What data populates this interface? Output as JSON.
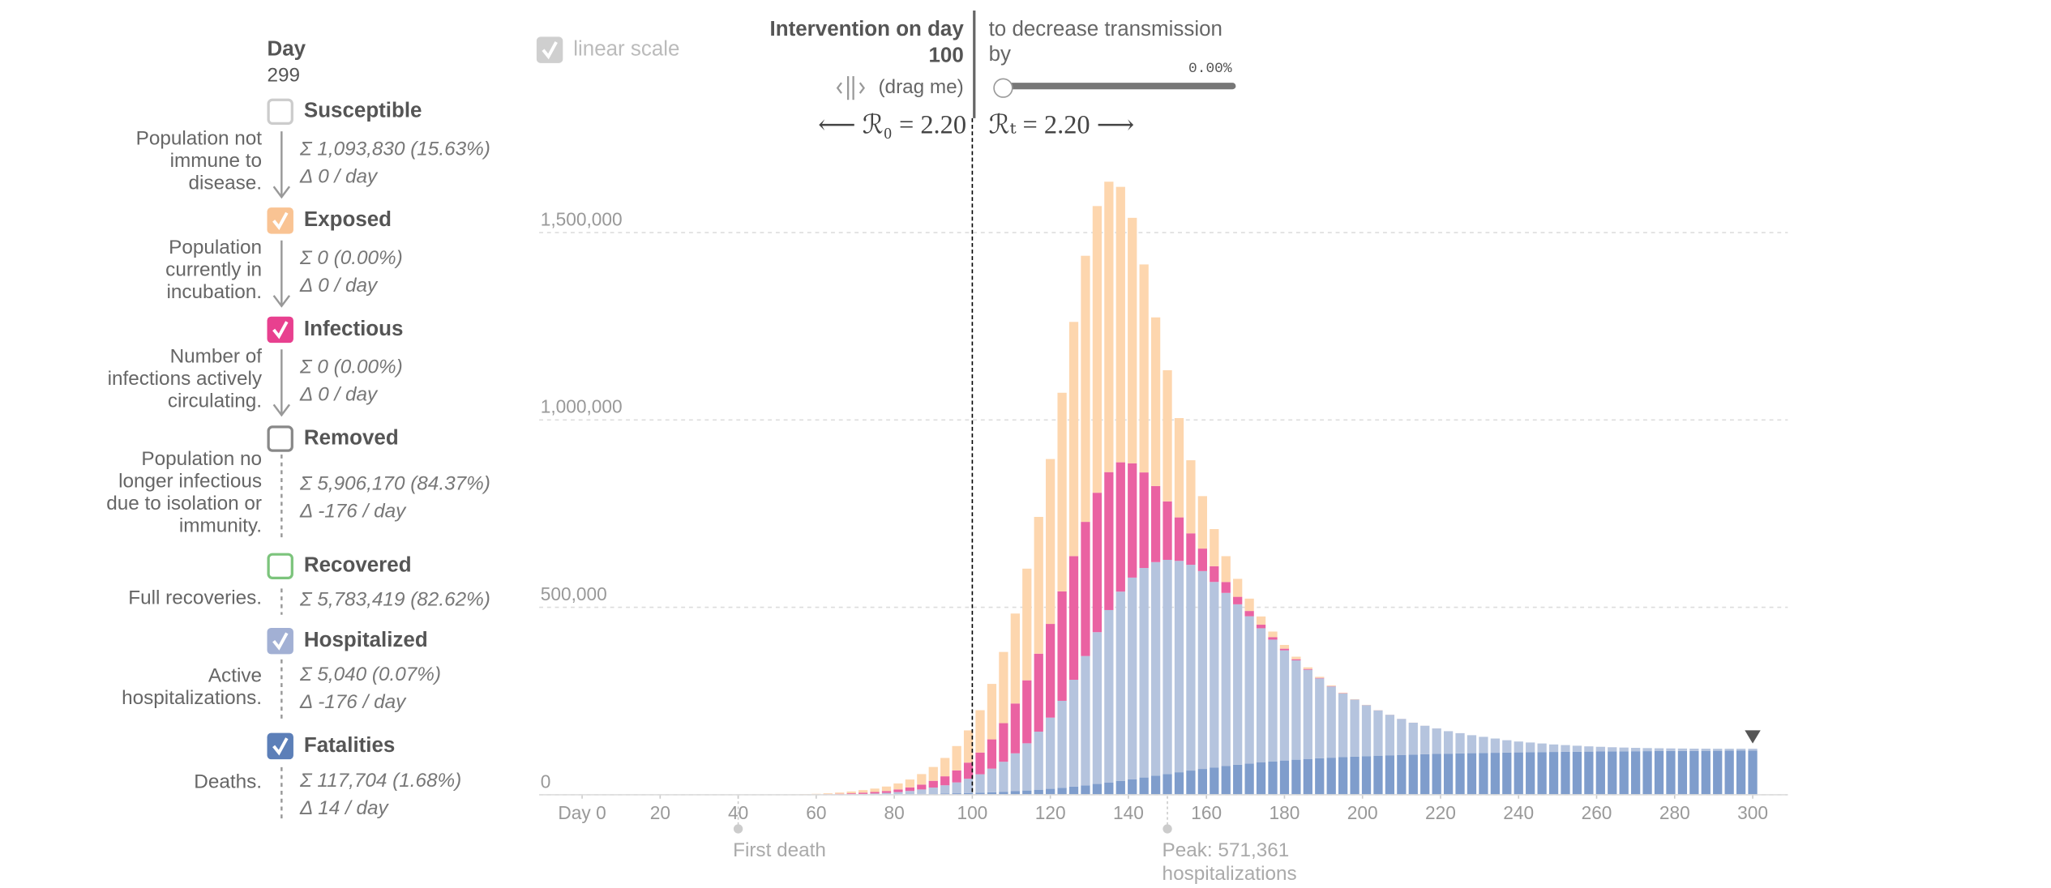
{
  "header": {
    "day_label": "Day",
    "day": 299,
    "linear_scale": "linear scale",
    "linear_checked": true
  },
  "intervention": {
    "label": "Intervention on day",
    "day": 100,
    "drag": "(drag me)",
    "decrease": [
      "to decrease transmission",
      "by"
    ],
    "amount": "0.00%",
    "r0": "⟵ ℛ₀ = 2.20",
    "rt": "ℛₜ = 2.20 ⟶"
  },
  "compartments": [
    {
      "name": "Susceptible",
      "checked": false,
      "color": "#cccccc",
      "description": [
        "Population not",
        "immune to",
        "disease."
      ],
      "total": "Σ 1,093,830 (15.63%)",
      "change": "Δ 0 / day"
    },
    {
      "name": "Exposed",
      "checked": true,
      "color": "#f9c393",
      "description": [
        "Population",
        "currently in",
        "incubation."
      ],
      "total": "Σ 0 (0.00%)",
      "change": "Δ 0 / day"
    },
    {
      "name": "Infectious",
      "checked": true,
      "color": "#e8408f",
      "description": [
        "Number of",
        "infections actively",
        "circulating."
      ],
      "total": "Σ 0 (0.00%)",
      "change": "Δ 0 / day"
    },
    {
      "name": "Removed",
      "checked": false,
      "color": "#888888",
      "description": [
        "Population no",
        "longer infectious",
        "due to isolation or",
        "immunity."
      ],
      "total": "Σ 5,906,170 (84.37%)",
      "change": "Δ -176 / day"
    },
    {
      "name": "Recovered",
      "checked": false,
      "color": "#7cc47c",
      "description": [
        "Full recoveries."
      ],
      "total": "Σ 5,783,419 (82.62%)"
    },
    {
      "name": "Hospitalized",
      "checked": true,
      "color": "#a2b0d4",
      "description": [
        "Active",
        "hospitalizations."
      ],
      "total": "Σ 5,040 (0.07%)",
      "change": "Δ -176 / day"
    },
    {
      "name": "Fatalities",
      "checked": true,
      "color": "#5c7fb8",
      "description": [
        "Deaths."
      ],
      "total": "Σ 117,704 (1.68%)",
      "change": "Δ 14 / day"
    }
  ],
  "chart_data": {
    "type": "bar",
    "stacked": true,
    "x": [
      0,
      3,
      6,
      9,
      12,
      15,
      18,
      21,
      24,
      27,
      30,
      33,
      36,
      39,
      42,
      45,
      48,
      51,
      54,
      57,
      60,
      63,
      66,
      69,
      72,
      75,
      78,
      81,
      84,
      87,
      90,
      93,
      96,
      99,
      102,
      105,
      108,
      111,
      114,
      117,
      120,
      123,
      126,
      129,
      132,
      135,
      138,
      141,
      144,
      147,
      150,
      153,
      156,
      159,
      162,
      165,
      168,
      171,
      174,
      177,
      180,
      183,
      186,
      189,
      192,
      195,
      198,
      201,
      204,
      207,
      210,
      213,
      216,
      219,
      222,
      225,
      228,
      231,
      234,
      237,
      240,
      243,
      246,
      249,
      252,
      255,
      258,
      261,
      264,
      267,
      270,
      273,
      276,
      279,
      282,
      285,
      288,
      291,
      294,
      297,
      300
    ],
    "series": [
      {
        "name": "Fatalities",
        "color": "#7f9dcc",
        "values": [
          0,
          0,
          0,
          0,
          0,
          0,
          0,
          0,
          0,
          0,
          0,
          0,
          0,
          0,
          0,
          0,
          0,
          0,
          0,
          0,
          0,
          100,
          200,
          300,
          500,
          700,
          1000,
          1300,
          1700,
          2100,
          2600,
          3200,
          3900,
          4700,
          5600,
          6700,
          8000,
          9500,
          11300,
          13400,
          15800,
          18600,
          21700,
          25100,
          28800,
          32800,
          37000,
          41400,
          46000,
          50700,
          55400,
          60000,
          64500,
          68800,
          72800,
          76600,
          80100,
          83300,
          86200,
          88900,
          91300,
          93500,
          95500,
          97300,
          98900,
          100400,
          101800,
          103000,
          104200,
          105300,
          106300,
          107200,
          108100,
          108900,
          109600,
          110300,
          110900,
          111500,
          112000,
          112500,
          113000,
          113400,
          113800,
          114200,
          114500,
          114800,
          115100,
          115400,
          115700,
          115900,
          116100,
          116300,
          116500,
          116700,
          116900,
          117000,
          117200,
          117300,
          117500,
          117600,
          117704
        ]
      },
      {
        "name": "Hospitalized",
        "color": "#b5c4de",
        "values": [
          0,
          0,
          0,
          0,
          0,
          0,
          0,
          0,
          0,
          0,
          0,
          0,
          0,
          0,
          0,
          0,
          0,
          0,
          0,
          100,
          200,
          400,
          700,
          1100,
          1700,
          2600,
          3900,
          5800,
          8400,
          12000,
          16500,
          22000,
          29000,
          38000,
          49000,
          63000,
          80000,
          101000,
          126000,
          155000,
          190000,
          232000,
          285000,
          345000,
          405000,
          460000,
          505000,
          538000,
          559000,
          570000,
          571361,
          564000,
          549000,
          528000,
          495000,
          462000,
          428000,
          393000,
          358000,
          325000,
          294000,
          265000,
          238000,
          213000,
          190000,
          170000,
          152000,
          136000,
          121000,
          108000,
          96000,
          85000,
          76000,
          68000,
          60000,
          54000,
          48000,
          43000,
          38000,
          33000,
          29000,
          26000,
          23000,
          20000,
          18000,
          16000,
          14000,
          12500,
          11000,
          10000,
          9000,
          8200,
          7500,
          6900,
          6400,
          6000,
          5700,
          5400,
          5200,
          5100,
          5040
        ]
      },
      {
        "name": "Infectious",
        "color": "#ea62a2",
        "values": [
          0,
          0,
          0,
          0,
          0,
          0,
          0,
          0,
          0,
          0,
          0,
          0,
          0,
          0,
          0,
          100,
          150,
          220,
          330,
          500,
          740,
          1100,
          1650,
          2400,
          3300,
          4100,
          5000,
          7000,
          9500,
          13000,
          18000,
          24000,
          32000,
          43000,
          58000,
          78000,
          103000,
          133000,
          168000,
          208000,
          250000,
          292000,
          330000,
          358000,
          372000,
          368000,
          345000,
          305000,
          255000,
          203000,
          156000,
          116000,
          84000,
          60000,
          42000,
          29000,
          20000,
          14000,
          9500,
          6500,
          4400,
          3000,
          2000,
          1400,
          900,
          600,
          400,
          300,
          200,
          130,
          90,
          60,
          40,
          25,
          15,
          10,
          0,
          0,
          0,
          0,
          0,
          0,
          0,
          0,
          0,
          0,
          0,
          0,
          0,
          0,
          0,
          0,
          0,
          0,
          0,
          0,
          0,
          0,
          0,
          0,
          0
        ]
      },
      {
        "name": "Exposed",
        "color": "#fdd6ae",
        "values": [
          0,
          0,
          0,
          0,
          0,
          0,
          0,
          0,
          0,
          0,
          0,
          0,
          0,
          0,
          0,
          200,
          300,
          450,
          680,
          1000,
          1500,
          2200,
          3300,
          4800,
          6800,
          9000,
          12000,
          16000,
          21000,
          28000,
          37000,
          49000,
          65000,
          86000,
          113000,
          148000,
          190000,
          240000,
          298000,
          365000,
          440000,
          530000,
          625000,
          710000,
          765000,
          775000,
          735000,
          655000,
          555000,
          450000,
          350000,
          265000,
          195000,
          140000,
          99000,
          69000,
          48000,
          33000,
          22000,
          15000,
          10000,
          6800,
          4500,
          3000,
          2000,
          1300,
          850,
          550,
          350,
          230,
          150,
          100,
          60,
          40,
          25,
          15,
          10,
          0,
          0,
          0,
          0,
          0,
          0,
          0,
          0,
          0,
          0,
          0,
          0,
          0,
          0,
          0,
          0,
          0,
          0,
          0,
          0,
          0,
          0,
          0,
          0
        ]
      }
    ],
    "xlim": [
      -11,
      309
    ],
    "xticks": [
      {
        "value": 0,
        "label": "Day 0"
      },
      20,
      40,
      60,
      80,
      100,
      120,
      140,
      160,
      180,
      200,
      220,
      240,
      260,
      280,
      300
    ],
    "ylim": [
      0,
      1700000
    ],
    "yticks": [
      0,
      {
        "value": 500000,
        "label": "500,000"
      },
      {
        "value": 1000000,
        "label": "1,000,000"
      },
      {
        "value": 1500000,
        "label": "1,500,000"
      }
    ],
    "grid": true,
    "annotations": [
      {
        "x": 40,
        "lines": [
          "First death"
        ]
      },
      {
        "x": 150,
        "lines": [
          "Peak: 571,361",
          "hospitalizations"
        ]
      }
    ]
  }
}
